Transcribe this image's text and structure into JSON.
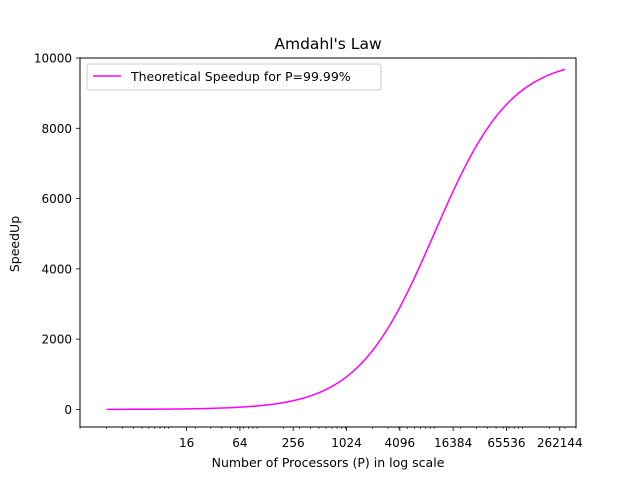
{
  "chart_data": {
    "type": "line",
    "title": "Amdahl's Law",
    "xlabel": "Number of Processors (P) in log scale",
    "ylabel": "SpeedUp",
    "x_scale": "log2",
    "xlim": [
      1,
      400000
    ],
    "ylim": [
      -500,
      10000
    ],
    "x_ticks": [
      {
        "value": 16,
        "label": "16"
      },
      {
        "value": 64,
        "label": "64"
      },
      {
        "value": 256,
        "label": "256"
      },
      {
        "value": 1024,
        "label": "1024"
      },
      {
        "value": 4096,
        "label": "4096"
      },
      {
        "value": 16384,
        "label": "16384"
      },
      {
        "value": 65536,
        "label": "65536"
      },
      {
        "value": 262144,
        "label": "262144"
      }
    ],
    "y_ticks": [
      {
        "value": 0,
        "label": "0"
      },
      {
        "value": 2000,
        "label": "2000"
      },
      {
        "value": 4000,
        "label": "4000"
      },
      {
        "value": 6000,
        "label": "6000"
      },
      {
        "value": 8000,
        "label": "8000"
      },
      {
        "value": 10000,
        "label": "10000"
      }
    ],
    "grid": false,
    "legend_position": "top-left",
    "series": [
      {
        "name": "Theoretical Speedup for P=99.99%",
        "color": "#ff00ff",
        "parallel_fraction": 0.9999,
        "x": [
          2,
          4,
          8,
          16,
          32,
          64,
          128,
          256,
          512,
          1024,
          2048,
          4096,
          8192,
          16384,
          32768,
          65536,
          131072,
          262144,
          300000
        ],
        "y": [
          2,
          4,
          8,
          16,
          32,
          64,
          126,
          250,
          489,
          934,
          1718,
          2948,
          4502,
          6211,
          7663,
          8676,
          9291,
          9633,
          9680
        ]
      }
    ]
  }
}
